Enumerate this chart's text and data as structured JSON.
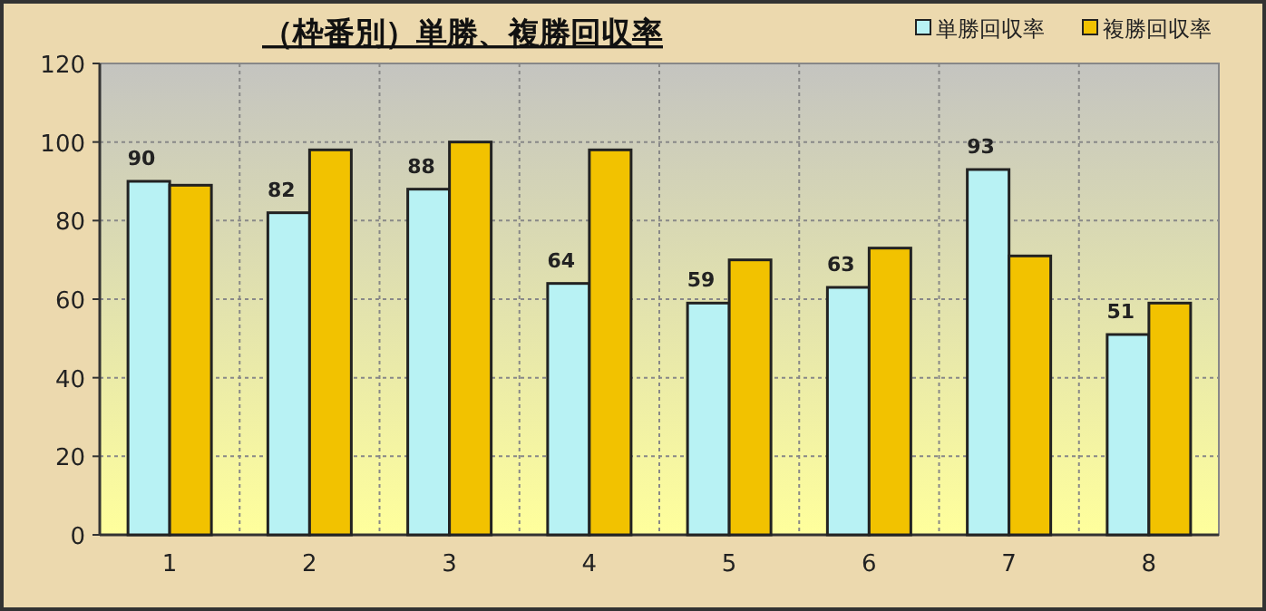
{
  "chart_data": {
    "type": "bar",
    "title": "（枠番別）単勝、複勝回収率",
    "categories": [
      "1",
      "2",
      "3",
      "4",
      "5",
      "6",
      "7",
      "8"
    ],
    "series": [
      {
        "name": "単勝回収率",
        "color": "#b8f2f4",
        "values": [
          90,
          82,
          88,
          64,
          59,
          63,
          93,
          51
        ],
        "value_labels": [
          "90",
          "82",
          "88",
          "64",
          "59",
          "63",
          "93",
          "51"
        ]
      },
      {
        "name": "複勝回収率",
        "color": "#f2c200",
        "values": [
          89,
          98,
          100,
          98,
          70,
          73,
          71,
          59
        ]
      }
    ],
    "ylim": [
      0,
      120
    ],
    "yticks": [
      0,
      20,
      40,
      60,
      80,
      100,
      120
    ],
    "grid": true,
    "legend": "top right"
  }
}
